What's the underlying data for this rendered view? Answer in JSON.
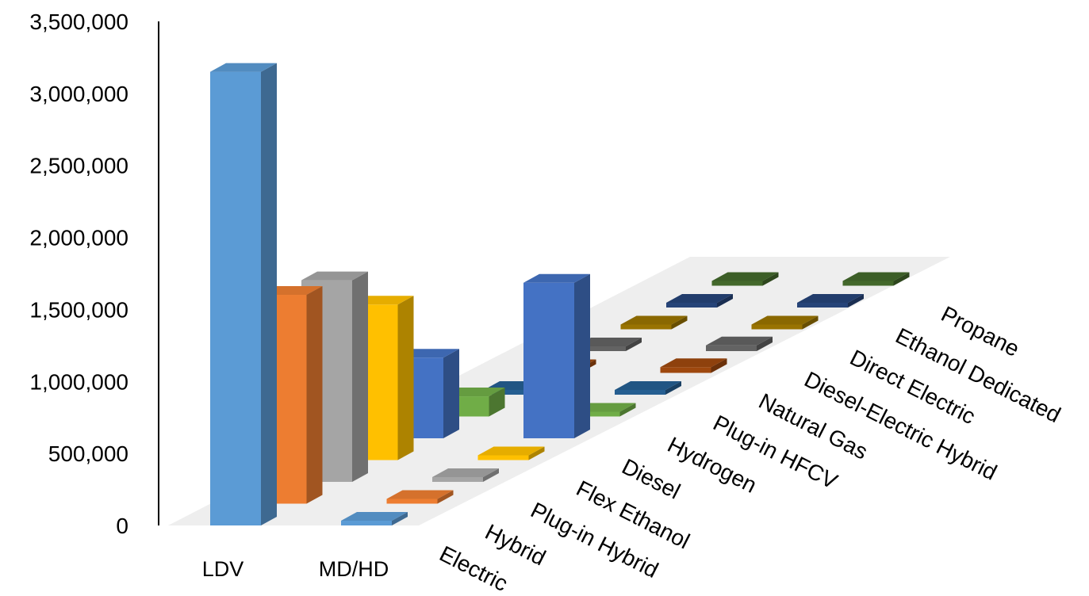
{
  "chart_data": {
    "type": "bar",
    "subtype": "3d-column",
    "title": "",
    "xlabel": "",
    "ylabel": "",
    "ylim": [
      0,
      3500000
    ],
    "yticks": [
      "0",
      "500,000",
      "1,000,000",
      "1,500,000",
      "2,000,000",
      "2,500,000",
      "3,000,000",
      "3,500,000"
    ],
    "categories": [
      "LDV",
      "MD/HD"
    ],
    "grid": false,
    "floor_color": "#eeeeee",
    "series": [
      {
        "name": "Electric",
        "color": "#5b9bd5",
        "values": [
          3150000,
          10000
        ]
      },
      {
        "name": "Hybrid",
        "color": "#ed7d31",
        "values": [
          1450000,
          10000
        ]
      },
      {
        "name": "Plug-in Hybrid",
        "color": "#a5a5a5",
        "values": [
          1400000,
          10000
        ]
      },
      {
        "name": "Flex Ethanol",
        "color": "#ffc000",
        "values": [
          1080000,
          10000
        ]
      },
      {
        "name": "Diesel",
        "color": "#4472c4",
        "values": [
          560000,
          1080000
        ]
      },
      {
        "name": "Hydrogen",
        "color": "#70ad47",
        "values": [
          140000,
          10000
        ]
      },
      {
        "name": "Plug-in HFCV",
        "color": "#255e91",
        "values": [
          10000,
          10000
        ]
      },
      {
        "name": "Natural Gas",
        "color": "#9e480e",
        "values": [
          10000,
          40000
        ]
      },
      {
        "name": "Diesel-Electric Hybrid",
        "color": "#636363",
        "values": [
          0,
          40000
        ]
      },
      {
        "name": "Direct Electric",
        "color": "#997300",
        "values": [
          0,
          10000
        ]
      },
      {
        "name": "Ethanol Dedicated",
        "color": "#264478",
        "values": [
          0,
          10000
        ]
      },
      {
        "name": "Propane",
        "color": "#43682b",
        "values": [
          0,
          10000
        ]
      }
    ]
  }
}
